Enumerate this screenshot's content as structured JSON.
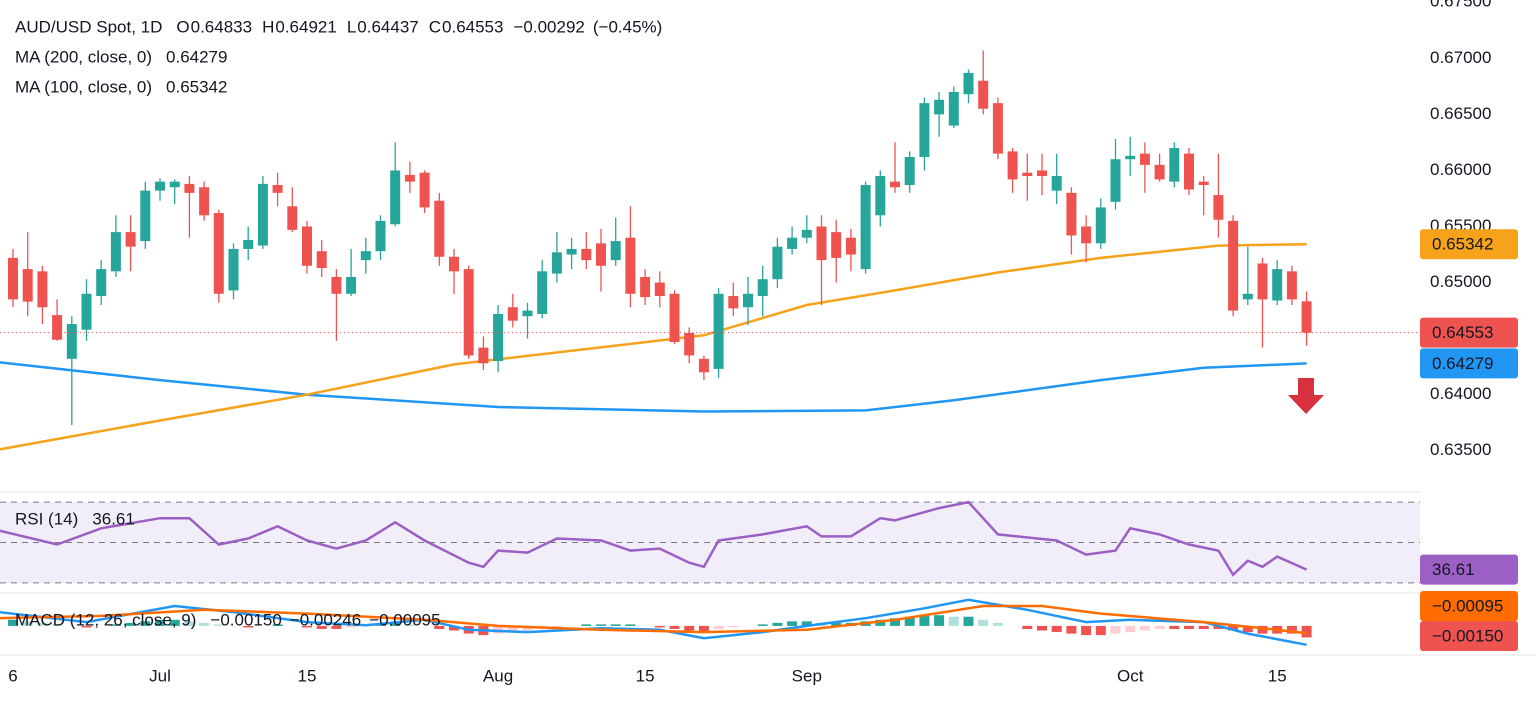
{
  "chart_data": [
    {
      "type": "candlestick",
      "title": "AUD/USD Spot, 1D",
      "header_letters": [
        "O",
        "H",
        "L",
        "C"
      ],
      "change": {
        "value": -0.00292,
        "label": "−0.00292"
      },
      "change_pct": {
        "value": -0.45,
        "label": "(−0.45%)"
      },
      "up_color": "#26a69a",
      "down_color": "#ef5350",
      "last_price_line": true,
      "categories": [
        "6",
        null,
        null,
        null,
        null,
        null,
        null,
        null,
        null,
        null,
        "Jul",
        null,
        null,
        null,
        null,
        null,
        null,
        null,
        null,
        null,
        "15",
        null,
        null,
        null,
        null,
        null,
        null,
        null,
        null,
        null,
        null,
        null,
        null,
        "Aug",
        null,
        null,
        null,
        null,
        null,
        null,
        null,
        null,
        null,
        "15",
        null,
        null,
        null,
        null,
        null,
        null,
        null,
        null,
        null,
        null,
        "Sep",
        null,
        null,
        null,
        null,
        null,
        null,
        null,
        null,
        null,
        null,
        null,
        null,
        null,
        null,
        null,
        null,
        null,
        null,
        null,
        null,
        null,
        "Oct",
        null,
        null,
        null,
        null,
        null,
        null,
        null,
        null,
        null,
        "15",
        null,
        null
      ],
      "open": [
        0.6522,
        0.6512,
        0.651,
        0.6471,
        0.6432,
        0.6458,
        0.6488,
        0.651,
        0.6545,
        0.6537,
        0.6582,
        0.6585,
        0.6588,
        0.6585,
        0.6562,
        0.6493,
        0.653,
        0.6533,
        0.6587,
        0.6568,
        0.655,
        0.6528,
        0.6505,
        0.649,
        0.652,
        0.6528,
        0.6552,
        0.6596,
        0.6598,
        0.6573,
        0.6523,
        0.6512,
        0.6442,
        0.643,
        0.6478,
        0.647,
        0.6472,
        0.6508,
        0.6525,
        0.653,
        0.6535,
        0.652,
        0.654,
        0.6505,
        0.65,
        0.649,
        0.6455,
        0.6432,
        0.6423,
        0.6488,
        0.6478,
        0.6488,
        0.6503,
        0.653,
        0.654,
        0.655,
        0.6545,
        0.654,
        0.6512,
        0.656,
        0.659,
        0.6587,
        0.6612,
        0.665,
        0.664,
        0.6668,
        0.668,
        0.666,
        0.6617,
        0.6598,
        0.66,
        0.6582,
        0.658,
        0.655,
        0.6535,
        0.6572,
        0.661,
        0.6615,
        0.6605,
        0.659,
        0.6615,
        0.659,
        0.6578,
        0.6555,
        0.6485,
        0.6517,
        0.6484,
        0.651,
        0.64833
      ],
      "high": [
        0.653,
        0.6545,
        0.6515,
        0.6485,
        0.647,
        0.6503,
        0.652,
        0.656,
        0.656,
        0.659,
        0.6593,
        0.6592,
        0.6595,
        0.659,
        0.6565,
        0.6535,
        0.655,
        0.6595,
        0.6598,
        0.6585,
        0.6555,
        0.6538,
        0.6512,
        0.653,
        0.654,
        0.656,
        0.6625,
        0.6608,
        0.66,
        0.658,
        0.653,
        0.6515,
        0.6452,
        0.648,
        0.649,
        0.6482,
        0.652,
        0.6545,
        0.654,
        0.6545,
        0.6548,
        0.6558,
        0.6568,
        0.6512,
        0.651,
        0.6493,
        0.646,
        0.6435,
        0.6495,
        0.65,
        0.6505,
        0.6515,
        0.654,
        0.655,
        0.656,
        0.656,
        0.6556,
        0.6548,
        0.659,
        0.66,
        0.6625,
        0.6617,
        0.6665,
        0.667,
        0.6675,
        0.669,
        0.6707,
        0.6665,
        0.662,
        0.6615,
        0.6615,
        0.6615,
        0.6585,
        0.656,
        0.6575,
        0.6628,
        0.663,
        0.6625,
        0.6615,
        0.6625,
        0.662,
        0.6595,
        0.6615,
        0.656,
        0.6532,
        0.6522,
        0.652,
        0.6515,
        0.64921
      ],
      "low": [
        0.6478,
        0.647,
        0.6463,
        0.6448,
        0.6373,
        0.6448,
        0.648,
        0.6505,
        0.651,
        0.653,
        0.6573,
        0.657,
        0.654,
        0.6555,
        0.6482,
        0.6485,
        0.652,
        0.653,
        0.6568,
        0.6545,
        0.6508,
        0.6505,
        0.6448,
        0.6488,
        0.6508,
        0.652,
        0.655,
        0.658,
        0.6562,
        0.6515,
        0.649,
        0.6432,
        0.6422,
        0.642,
        0.646,
        0.645,
        0.6468,
        0.65,
        0.6512,
        0.6512,
        0.6492,
        0.6515,
        0.6478,
        0.648,
        0.6478,
        0.6445,
        0.6428,
        0.6413,
        0.6415,
        0.647,
        0.6462,
        0.647,
        0.6495,
        0.6525,
        0.6535,
        0.648,
        0.65,
        0.651,
        0.6508,
        0.655,
        0.658,
        0.658,
        0.66,
        0.663,
        0.6638,
        0.666,
        0.665,
        0.661,
        0.658,
        0.6573,
        0.6578,
        0.657,
        0.6525,
        0.6518,
        0.653,
        0.6565,
        0.6595,
        0.658,
        0.659,
        0.6585,
        0.6578,
        0.656,
        0.654,
        0.647,
        0.648,
        0.6442,
        0.648,
        0.648,
        0.64437
      ],
      "close": [
        0.6485,
        0.6483,
        0.6478,
        0.6449,
        0.6463,
        0.649,
        0.6512,
        0.6545,
        0.6532,
        0.6582,
        0.659,
        0.659,
        0.658,
        0.656,
        0.649,
        0.653,
        0.6538,
        0.6588,
        0.658,
        0.6547,
        0.6515,
        0.6513,
        0.649,
        0.6505,
        0.6528,
        0.6555,
        0.66,
        0.659,
        0.6567,
        0.6523,
        0.651,
        0.6435,
        0.6428,
        0.6472,
        0.6466,
        0.6475,
        0.651,
        0.6527,
        0.653,
        0.652,
        0.6515,
        0.6537,
        0.649,
        0.6487,
        0.6488,
        0.6447,
        0.6435,
        0.642,
        0.649,
        0.6477,
        0.649,
        0.6503,
        0.6532,
        0.654,
        0.6547,
        0.652,
        0.6522,
        0.6525,
        0.6587,
        0.6595,
        0.6585,
        0.6612,
        0.666,
        0.6663,
        0.667,
        0.6687,
        0.6655,
        0.6615,
        0.6592,
        0.6595,
        0.6595,
        0.6595,
        0.6542,
        0.6535,
        0.6567,
        0.661,
        0.6613,
        0.6605,
        0.6592,
        0.662,
        0.6583,
        0.6587,
        0.6556,
        0.6475,
        0.649,
        0.6485,
        0.6512,
        0.6485,
        0.64553
      ],
      "series": [
        {
          "name": "MA (200, close, 0)",
          "color": "#2196f3",
          "x": [
            -1,
            10,
            20,
            33,
            47,
            58,
            64,
            74,
            81,
            88
          ],
          "values": [
            0.6429,
            0.6413,
            0.64,
            0.6389,
            0.6385,
            0.6386,
            0.6395,
            0.6413,
            0.6424,
            0.64279
          ]
        },
        {
          "name": "MA (100, close, 0)",
          "color": "#f7a21b",
          "x": [
            -1,
            10,
            20,
            30,
            47,
            54,
            60,
            67,
            74,
            82,
            88
          ],
          "values": [
            0.6351,
            0.6377,
            0.64,
            0.6427,
            0.6453,
            0.648,
            0.6493,
            0.6509,
            0.6522,
            0.6533,
            0.65342
          ]
        }
      ],
      "ylim": [
        0.6315,
        0.6752
      ],
      "yticks": [
        {
          "value": 0.675,
          "label": "0.67500"
        },
        {
          "value": 0.67,
          "label": "0.67000"
        },
        {
          "value": 0.665,
          "label": "0.66500"
        },
        {
          "value": 0.66,
          "label": "0.66000"
        },
        {
          "value": 0.655,
          "label": "0.65500"
        },
        {
          "value": 0.65,
          "label": "0.65000"
        },
        {
          "value": 0.64,
          "label": "0.64000"
        },
        {
          "value": 0.635,
          "label": "0.63500"
        }
      ],
      "grid": false
    },
    {
      "type": "line",
      "series": [
        {
          "name": "RSI (14)",
          "color": "#9c5fc4",
          "x": [
            -1,
            3,
            6,
            10,
            12,
            14,
            16,
            18,
            20,
            22,
            24,
            26,
            28,
            31,
            32,
            33,
            35,
            37,
            40,
            42,
            44,
            46,
            47,
            48,
            51,
            54,
            55,
            57,
            59,
            60,
            63,
            65,
            67,
            71,
            73,
            75,
            76,
            78,
            80,
            82,
            83,
            84,
            85,
            86,
            88
          ],
          "values": [
            56,
            49,
            57,
            62,
            62,
            49,
            52,
            58,
            51,
            47,
            51,
            60,
            51,
            40,
            38,
            46,
            45,
            52,
            51,
            46,
            47,
            40,
            38,
            51,
            54,
            58,
            53,
            53,
            62,
            61,
            67,
            70,
            54,
            51,
            44,
            46,
            57,
            54,
            49,
            46,
            34,
            41,
            38,
            43,
            36.61
          ]
        }
      ],
      "levels": [
        70,
        50,
        30
      ],
      "band_color": "#7e57c2",
      "ylim": [
        26.5,
        73
      ]
    },
    {
      "type": "macd",
      "title": "MACD (12, 26, close, 9)",
      "histogram": {
        "colors": [
          "#26a69a",
          "#b2dfdb",
          "#ef5350",
          "#ffcdd2"
        ],
        "last_label": "−0.00150",
        "values": [
          0.0008,
          0.0006,
          0.0004,
          0.0002,
          0,
          -0.0002,
          0,
          0.0002,
          0.0004,
          0.0006,
          0.0008,
          0.0008,
          0.0006,
          0.0004,
          0.0002,
          0,
          -0.0002,
          0,
          0.0002,
          0,
          -0.0002,
          -0.0004,
          -0.0004,
          -0.0002,
          0,
          0.0002,
          0.0004,
          0.0002,
          0,
          -0.0004,
          -0.0006,
          -0.001,
          -0.0012,
          -0.001,
          -0.0008,
          -0.0006,
          -0.0004,
          -0.0002,
          0,
          0.0002,
          0.0002,
          0.0002,
          0.0002,
          0,
          -0.0002,
          -0.0004,
          -0.0006,
          -0.0008,
          -0.0004,
          -0.0002,
          0,
          0.0002,
          0.0004,
          0.0006,
          0.0006,
          0.0004,
          0.0004,
          0.0004,
          0.0006,
          0.0008,
          0.001,
          0.0012,
          0.0014,
          0.0014,
          0.0012,
          0.0012,
          0.0008,
          0.0004,
          0,
          -0.0004,
          -0.0006,
          -0.0008,
          -0.001,
          -0.0012,
          -0.0012,
          -0.001,
          -0.0008,
          -0.0006,
          -0.0004,
          -0.0004,
          -0.0004,
          -0.0004,
          -0.0004,
          -0.0006,
          -0.0008,
          -0.001,
          -0.001,
          -0.001,
          -0.0015
        ]
      },
      "series": [
        {
          "color": "#2196f3",
          "last_label": "−0.00246",
          "x": [
            -1,
            5,
            11,
            15,
            20,
            24,
            28,
            31,
            35,
            40,
            44,
            47,
            51,
            54,
            58,
            62,
            65,
            69,
            73,
            76,
            81,
            84,
            88
          ],
          "values": [
            0.0018,
            0.0005,
            0.0026,
            0.0018,
            0.0005,
            0.0001,
            0.0008,
            -0.0005,
            -0.0008,
            -0.0003,
            -0.0005,
            -0.0016,
            -0.0008,
            0,
            0.001,
            0.0023,
            0.0034,
            0.0021,
            0.0005,
            0.0008,
            0.0005,
            -0.001,
            -0.00246
          ]
        },
        {
          "color": "#ff6d00",
          "last_label": "−0.00095",
          "x": [
            -1,
            6,
            13,
            20,
            28,
            33,
            40,
            47,
            54,
            60,
            66,
            70,
            74,
            81,
            85,
            88
          ],
          "values": [
            0.001,
            0.0013,
            0.0021,
            0.0016,
            0.0008,
            0,
            -0.0005,
            -0.0008,
            -0.0005,
            0.0008,
            0.0026,
            0.0026,
            0.0016,
            0.0005,
            -0.0003,
            -0.00095
          ]
        }
      ],
      "ylim": [
        -0.0034,
        0.0039
      ]
    }
  ]
}
